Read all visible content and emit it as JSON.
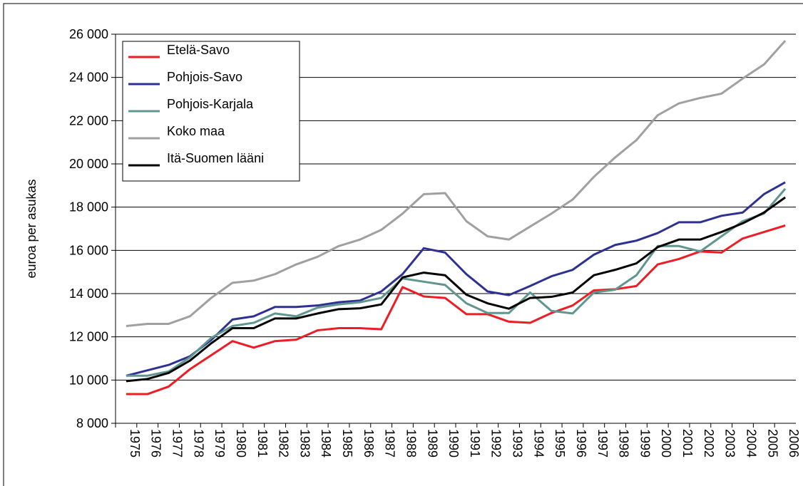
{
  "chart_data": {
    "type": "line",
    "y_label": "euroa per asukas",
    "categories": [
      "1975",
      "1976",
      "1977",
      "1978",
      "1979",
      "1980",
      "1981",
      "1982",
      "1983",
      "1984",
      "1985",
      "1986",
      "1987",
      "1988",
      "1989",
      "1990",
      "1991",
      "1992",
      "1993",
      "1994",
      "1995",
      "1996",
      "1997",
      "1998",
      "1999",
      "2000",
      "2001",
      "2002",
      "2003",
      "2004",
      "2005",
      "2006"
    ],
    "series": [
      {
        "name": "Etelä-Savo",
        "color": "#ee1c25",
        "values": [
          9350,
          9350,
          9700,
          10500,
          11150,
          11800,
          11500,
          11800,
          11870,
          12300,
          12400,
          12400,
          12350,
          14300,
          13870,
          13800,
          13050,
          13050,
          12700,
          12650,
          13100,
          13450,
          14150,
          14200,
          14350,
          15350,
          15600,
          15950,
          15900,
          16550,
          16850,
          17150
        ]
      },
      {
        "name": "Pohjois-Savo",
        "color": "#2e3192",
        "values": [
          10200,
          10450,
          10700,
          11100,
          11850,
          12800,
          12950,
          13380,
          13380,
          13450,
          13600,
          13680,
          14100,
          14900,
          16100,
          15900,
          14900,
          14100,
          13930,
          14350,
          14800,
          15100,
          15800,
          16250,
          16450,
          16800,
          17300,
          17300,
          17600,
          17750,
          18600,
          19150
        ]
      },
      {
        "name": "Pohjois-Karjala",
        "color": "#5f968f",
        "values": [
          10200,
          10200,
          10400,
          11050,
          11950,
          12500,
          12650,
          13080,
          12950,
          13350,
          13500,
          13600,
          13800,
          14700,
          14550,
          14400,
          13550,
          13100,
          13100,
          14050,
          13200,
          13080,
          14050,
          14180,
          14850,
          16200,
          16200,
          15950,
          16650,
          17350,
          17700,
          18850
        ]
      },
      {
        "name": "Koko maa",
        "color": "#a0a0a0",
        "values": [
          12500,
          12600,
          12600,
          12950,
          13800,
          14500,
          14600,
          14900,
          15350,
          15700,
          16200,
          16500,
          16950,
          17700,
          18600,
          18650,
          17350,
          16650,
          16500,
          17100,
          17700,
          18350,
          19400,
          20300,
          21100,
          22250,
          22800,
          23050,
          23250,
          23950,
          24600,
          25700
        ]
      },
      {
        "name": "Itä-Suomen lääni",
        "color": "#000000",
        "values": [
          9950,
          10050,
          10330,
          10900,
          11700,
          12400,
          12400,
          12850,
          12850,
          13080,
          13280,
          13320,
          13500,
          14750,
          14970,
          14850,
          13950,
          13550,
          13300,
          13800,
          13850,
          14050,
          14850,
          15100,
          15400,
          16150,
          16500,
          16500,
          16850,
          17250,
          17750,
          18450
        ]
      }
    ],
    "ylim": [
      8000,
      26000
    ],
    "yticks": [
      {
        "value": 8000,
        "label": "8 000"
      },
      {
        "value": 10000,
        "label": "10 000"
      },
      {
        "value": 12000,
        "label": "12 000"
      },
      {
        "value": 14000,
        "label": "14 000"
      },
      {
        "value": 16000,
        "label": "16 000"
      },
      {
        "value": 18000,
        "label": "18 000"
      },
      {
        "value": 20000,
        "label": "20 000"
      },
      {
        "value": 22000,
        "label": "22 000"
      },
      {
        "value": 24000,
        "label": "24 000"
      },
      {
        "value": 26000,
        "label": "26 000"
      }
    ],
    "grid": true,
    "legend": "upper left"
  }
}
